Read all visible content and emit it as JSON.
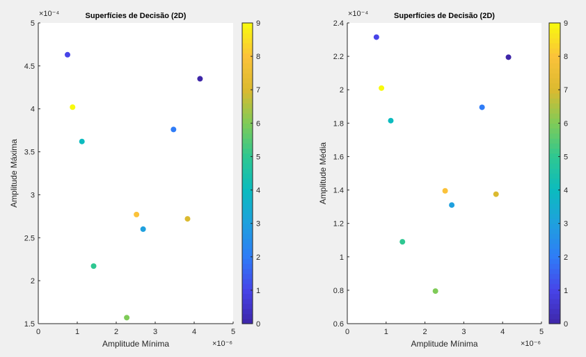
{
  "chart_data": [
    {
      "type": "scatter",
      "title": "Superfícies de Decisão (2D)",
      "xlabel": "Amplitude Mínima",
      "ylabel": "Amplitude Máxima",
      "x_exponent": "×10⁻⁶",
      "y_exponent": "×10⁻⁴",
      "xlim": [
        0,
        5
      ],
      "ylim": [
        1.5,
        5
      ],
      "xticks": [
        0,
        1,
        2,
        3,
        4,
        5
      ],
      "yticks": [
        1.5,
        2,
        2.5,
        3,
        3.5,
        4,
        4.5,
        5
      ],
      "ytick_labels": [
        "1.5",
        "2",
        "2.5",
        "3",
        "3.5",
        "4",
        "4.5",
        "5"
      ],
      "points": [
        {
          "x": 4.15,
          "y": 4.35,
          "class": 0
        },
        {
          "x": 0.75,
          "y": 4.63,
          "class": 1
        },
        {
          "x": 3.47,
          "y": 3.76,
          "class": 2
        },
        {
          "x": 2.69,
          "y": 2.6,
          "class": 3
        },
        {
          "x": 1.12,
          "y": 3.62,
          "class": 4
        },
        {
          "x": 1.42,
          "y": 2.17,
          "class": 5
        },
        {
          "x": 2.27,
          "y": 1.57,
          "class": 6
        },
        {
          "x": 3.83,
          "y": 2.72,
          "class": 7
        },
        {
          "x": 2.52,
          "y": 2.77,
          "class": 8
        },
        {
          "x": 0.88,
          "y": 4.02,
          "class": 9
        }
      ],
      "colorbar": {
        "range": [
          0,
          9
        ],
        "ticks": [
          0,
          1,
          2,
          3,
          4,
          5,
          6,
          7,
          8,
          9
        ]
      }
    },
    {
      "type": "scatter",
      "title": "Superfícies de Decisão (2D)",
      "xlabel": "Amplitude Mínima",
      "ylabel": "Amplitude Média",
      "x_exponent": "×10⁻⁶",
      "y_exponent": "×10⁻⁴",
      "xlim": [
        0,
        5
      ],
      "ylim": [
        0.6,
        2.4
      ],
      "xticks": [
        0,
        1,
        2,
        3,
        4,
        5
      ],
      "yticks": [
        0.6,
        0.8,
        1,
        1.2,
        1.4,
        1.6,
        1.8,
        2,
        2.2,
        2.4
      ],
      "ytick_labels": [
        "0.6",
        "0.8",
        "1",
        "1.2",
        "1.4",
        "1.6",
        "1.8",
        "2",
        "2.2",
        "2.4"
      ],
      "points": [
        {
          "x": 4.15,
          "y": 2.195,
          "class": 0
        },
        {
          "x": 0.75,
          "y": 2.315,
          "class": 1
        },
        {
          "x": 3.47,
          "y": 1.895,
          "class": 2
        },
        {
          "x": 2.69,
          "y": 1.31,
          "class": 3
        },
        {
          "x": 1.12,
          "y": 1.815,
          "class": 4
        },
        {
          "x": 1.42,
          "y": 1.09,
          "class": 5
        },
        {
          "x": 2.27,
          "y": 0.795,
          "class": 6
        },
        {
          "x": 3.83,
          "y": 1.375,
          "class": 7
        },
        {
          "x": 2.52,
          "y": 1.395,
          "class": 8
        },
        {
          "x": 0.88,
          "y": 2.01,
          "class": 9
        }
      ],
      "colorbar": {
        "range": [
          0,
          9
        ],
        "ticks": [
          0,
          1,
          2,
          3,
          4,
          5,
          6,
          7,
          8,
          9
        ]
      }
    }
  ],
  "colormap": [
    "#3e26a8",
    "#4744e8",
    "#2f7cf7",
    "#1fa0de",
    "#0cbbbf",
    "#2ec791",
    "#7fcb58",
    "#dbba30",
    "#fbc23a",
    "#f8fa0d"
  ]
}
